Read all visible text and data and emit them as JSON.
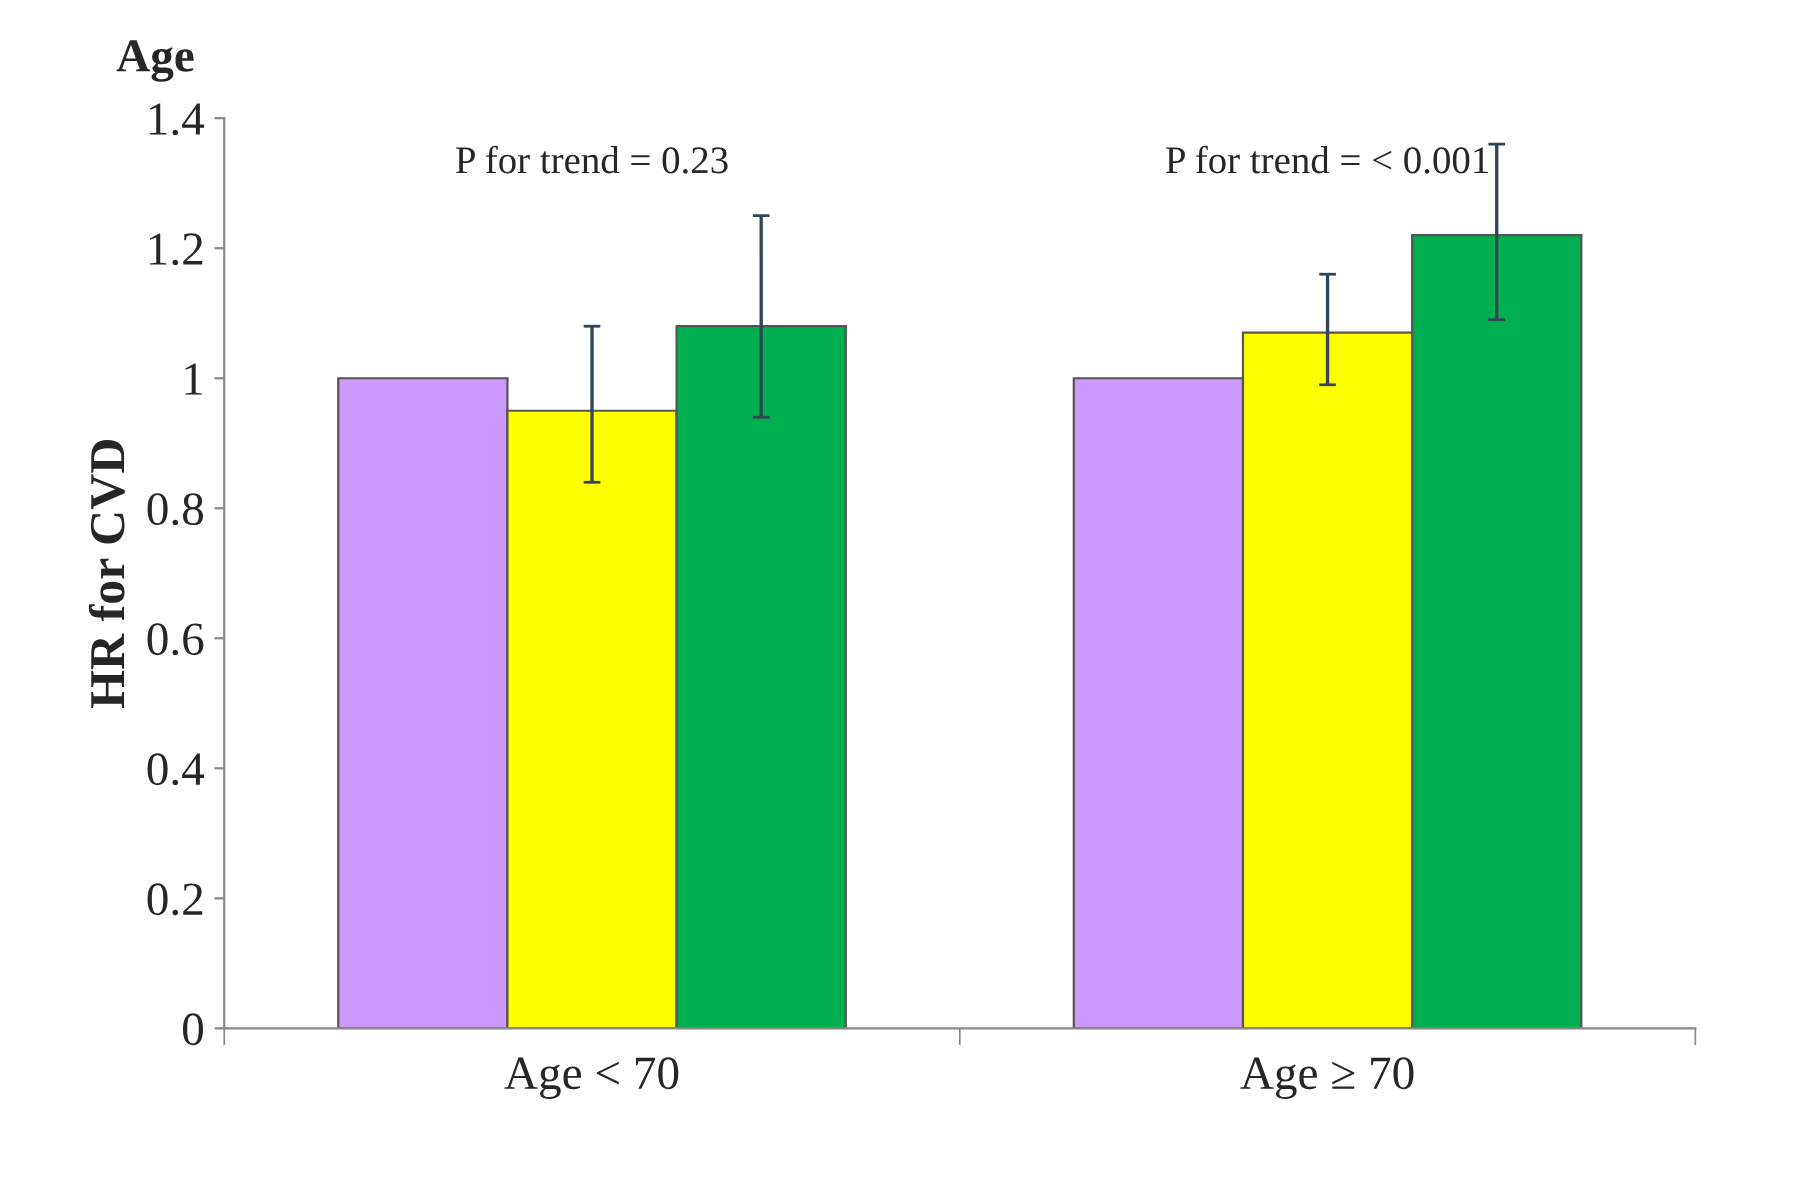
{
  "chart_data": {
    "type": "bar",
    "title": "Age",
    "ylabel": "HR for CVD",
    "categories": [
      "Age < 70",
      "Age ≥ 70"
    ],
    "series": [
      {
        "color": "#cc99ff",
        "values": [
          1.0,
          1.0
        ]
      },
      {
        "color": "#ffff00",
        "values": [
          0.95,
          1.07
        ],
        "errors": [
          [
            0.84,
            1.08
          ],
          [
            0.99,
            1.16
          ]
        ]
      },
      {
        "color": "#00b050",
        "values": [
          1.08,
          1.22
        ],
        "errors": [
          [
            0.94,
            1.25
          ],
          [
            1.09,
            1.36
          ]
        ]
      }
    ],
    "annotations": [
      "P for trend = 0.23",
      "P for trend = < 0.001"
    ],
    "ylim": [
      0,
      1.4
    ],
    "yticks": [
      0,
      0.2,
      0.4,
      0.6,
      0.8,
      1,
      1.2,
      1.4
    ],
    "grid": false,
    "legend": false
  }
}
